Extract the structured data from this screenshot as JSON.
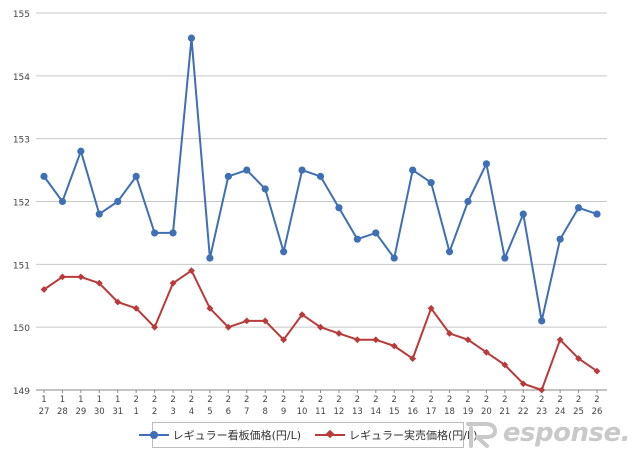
{
  "chart_data": {
    "type": "line",
    "title": "",
    "xlabel": "",
    "ylabel": "",
    "ylim": [
      149,
      155
    ],
    "yticks": [
      "149",
      "150",
      "151",
      "152",
      "153",
      "154",
      "155"
    ],
    "categories": [
      {
        "month": "1",
        "day": "27"
      },
      {
        "month": "1",
        "day": "28"
      },
      {
        "month": "1",
        "day": "29"
      },
      {
        "month": "1",
        "day": "30"
      },
      {
        "month": "1",
        "day": "31"
      },
      {
        "month": "2",
        "day": "1"
      },
      {
        "month": "2",
        "day": "2"
      },
      {
        "month": "2",
        "day": "3"
      },
      {
        "month": "2",
        "day": "4"
      },
      {
        "month": "2",
        "day": "5"
      },
      {
        "month": "2",
        "day": "6"
      },
      {
        "month": "2",
        "day": "7"
      },
      {
        "month": "2",
        "day": "8"
      },
      {
        "month": "2",
        "day": "9"
      },
      {
        "month": "2",
        "day": "10"
      },
      {
        "month": "2",
        "day": "11"
      },
      {
        "month": "2",
        "day": "12"
      },
      {
        "month": "2",
        "day": "13"
      },
      {
        "month": "2",
        "day": "14"
      },
      {
        "month": "2",
        "day": "15"
      },
      {
        "month": "2",
        "day": "16"
      },
      {
        "month": "2",
        "day": "17"
      },
      {
        "month": "2",
        "day": "18"
      },
      {
        "month": "2",
        "day": "19"
      },
      {
        "month": "2",
        "day": "20"
      },
      {
        "month": "2",
        "day": "21"
      },
      {
        "month": "2",
        "day": "22"
      },
      {
        "month": "2",
        "day": "23"
      },
      {
        "month": "2",
        "day": "24"
      },
      {
        "month": "2",
        "day": "25"
      },
      {
        "month": "2",
        "day": "26"
      }
    ],
    "series": [
      {
        "name": "レギュラー看板価格(円/L)",
        "color": "#3f6fb5",
        "marker": "circle",
        "values": [
          152.4,
          152.0,
          152.8,
          151.8,
          152.0,
          152.4,
          151.5,
          151.5,
          154.6,
          151.1,
          152.4,
          152.5,
          152.2,
          151.2,
          152.5,
          152.4,
          151.9,
          151.4,
          151.5,
          151.1,
          152.5,
          152.3,
          151.2,
          152.0,
          152.6,
          151.1,
          151.8,
          150.1,
          151.4,
          151.9,
          151.8
        ]
      },
      {
        "name": "レギュラー実売価格(円/L)",
        "color": "#b83a3a",
        "marker": "diamond",
        "values": [
          150.6,
          150.8,
          150.8,
          150.7,
          150.4,
          150.3,
          150.0,
          150.7,
          150.9,
          150.3,
          150.0,
          150.1,
          150.1,
          149.8,
          150.2,
          150.0,
          149.9,
          149.8,
          149.8,
          149.7,
          149.5,
          150.3,
          149.9,
          149.8,
          149.6,
          149.4,
          149.1,
          149.0,
          149.8,
          149.5,
          149.3
        ]
      }
    ],
    "grid": true,
    "legend": "bottom"
  },
  "watermark": {
    "text": "esponse.",
    "mark": "R"
  }
}
